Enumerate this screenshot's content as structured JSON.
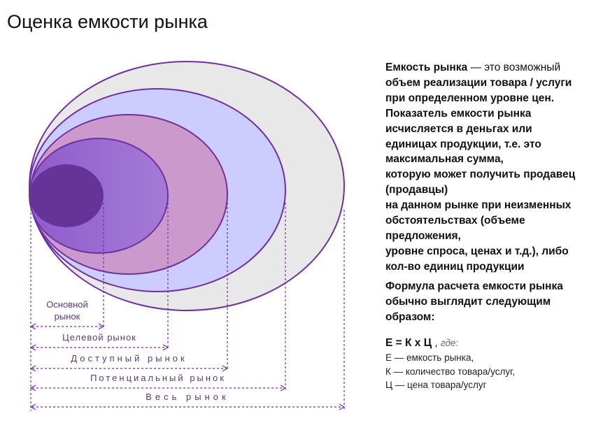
{
  "header": {
    "title": "Оценка емкости рынка"
  },
  "diagram": {
    "labels": [
      {
        "lines": [
          "Основной",
          "рынок"
        ]
      },
      {
        "lines": [
          "Целевой рынок"
        ]
      },
      {
        "lines": [
          "Доступный рынок"
        ]
      },
      {
        "lines": [
          "Потенциальный рынок"
        ]
      },
      {
        "lines": [
          "Весь рынок"
        ]
      }
    ]
  },
  "text": {
    "term": "Емкость рынка",
    "definition_lines": [
      "— это возможный",
      "объем реализации товара / услуги",
      "при определенном уровне цен.",
      "Показатель емкости рынка",
      "исчисляется в деньгах или",
      "единицах продукции, т.е. это",
      "максимальная сумма,",
      "которую может получить продавец",
      "(продавцы)",
      "на данном рынке при неизменных",
      "обстоятельствах (объеме",
      "предложения,",
      "уровне спроса, ценах и т.д.), либо",
      "кол-во единиц продукции"
    ],
    "formula_intro_lines": [
      "Формула расчета емкости рынка",
      "обычно выглядит следующим",
      "образом:"
    ],
    "formula": "Е = К х Ц",
    "formula_sep": ",",
    "formula_where": "где:",
    "legend_lines": [
      "Е — емкость рынка,",
      "К — количество товара/услуг,",
      "Ц — цена товара/услуг"
    ]
  }
}
